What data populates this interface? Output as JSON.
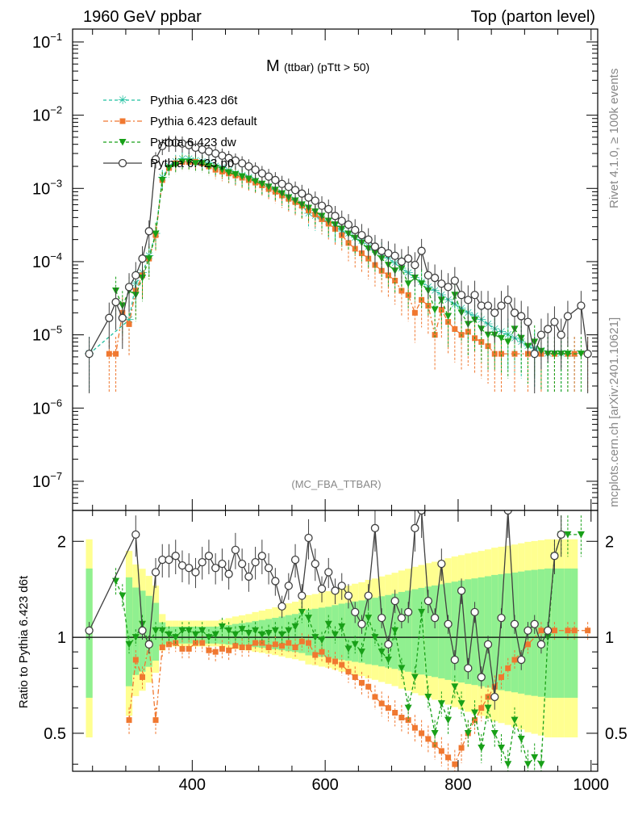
{
  "header": {
    "left": "1960 GeV ppbar",
    "right": "Top (parton level)"
  },
  "side": {
    "rivet": "Rivet 4.1.0, ≥ 100k events",
    "mcplots": "mcplots.cern.ch [arXiv:2401.10621]"
  },
  "colors": {
    "d6t": "#20c0a0",
    "default": "#f07830",
    "dw": "#18a018",
    "p0": "#404040",
    "band_yellow": "#ffff90",
    "band_green": "#90f090"
  },
  "chart_data": [
    {
      "type": "line",
      "title_main": "M",
      "title_sub": "(ttbar) (pTtt > 50)",
      "xlabel": "",
      "ylabel": "",
      "yscale": "log",
      "xlim": [
        220,
        1010
      ],
      "ylim": [
        4e-08,
        0.15
      ],
      "y_ticks": [
        "10^-1",
        "10^-2",
        "10^-3",
        "10^-4",
        "10^-5",
        "10^-6",
        "10^-7"
      ],
      "annotation": "(MC_FBA_TTBAR)",
      "legend_position": "top-left",
      "series": [
        {
          "name": "Pythia 6.423 d6t",
          "marker": "star",
          "key": "d6t",
          "x": [
            245,
            305,
            315,
            325,
            335,
            345,
            355,
            365,
            375,
            385,
            395,
            405,
            415,
            425,
            435,
            445,
            455,
            465,
            475,
            485,
            495,
            505,
            515,
            525,
            535,
            545,
            555,
            565,
            575,
            585,
            595,
            605,
            615,
            625,
            635,
            645,
            655,
            665,
            675,
            685,
            695,
            705,
            715,
            725,
            735,
            745,
            755,
            765,
            775,
            785,
            795,
            805,
            815,
            825,
            835,
            845,
            855,
            865,
            875,
            885,
            895,
            905,
            915,
            925,
            935,
            945,
            955,
            965,
            975
          ],
          "y": [
            5.5e-06,
            1.6e-05,
            5e-05,
            7e-05,
            0.00012,
            0.00024,
            0.0014,
            0.002,
            0.0023,
            0.0025,
            0.0025,
            0.0024,
            0.0023,
            0.0022,
            0.002,
            0.0019,
            0.00175,
            0.0016,
            0.0015,
            0.0014,
            0.00125,
            0.00115,
            0.00105,
            0.00095,
            0.00085,
            0.00075,
            0.00068,
            0.0006,
            0.00045,
            0.00042,
            0.00038,
            0.00035,
            0.0003,
            0.00026,
            0.00024,
            0.00021,
            0.00019,
            0.00016,
            0.000145,
            0.000125,
            0.00011,
            9.5e-05,
            8e-05,
            7e-05,
            6e-05,
            5.2e-05,
            4.5e-05,
            4e-05,
            3.5e-05,
            3e-05,
            2.6e-05,
            2.3e-05,
            2e-05,
            1.8e-05,
            1.6e-05,
            1.4e-05,
            1.2e-05,
            1.1e-05,
            1e-05,
            9e-06,
            8e-06,
            7e-06,
            6.5e-06,
            6e-06,
            5.5e-06,
            5.5e-06,
            5.5e-06,
            5.5e-06,
            5.5e-06
          ]
        },
        {
          "name": "Pythia 6.423 default",
          "marker": "square",
          "key": "default",
          "x": [
            275,
            285,
            295,
            305,
            315,
            325,
            335,
            345,
            355,
            365,
            375,
            385,
            395,
            405,
            415,
            425,
            435,
            445,
            455,
            465,
            475,
            485,
            495,
            505,
            515,
            525,
            535,
            545,
            555,
            565,
            575,
            585,
            595,
            605,
            615,
            625,
            635,
            645,
            655,
            665,
            675,
            685,
            695,
            705,
            715,
            725,
            735,
            745,
            755,
            765,
            775,
            785,
            795,
            805,
            815,
            825,
            835,
            845,
            855,
            865,
            885,
            905,
            925,
            945,
            965,
            975,
            995
          ],
          "y": [
            5.5e-06,
            5.5e-06,
            2e-05,
            1.4e-05,
            4e-05,
            6.5e-05,
            0.00011,
            0.00023,
            0.0013,
            0.0019,
            0.0022,
            0.0023,
            0.0023,
            0.0023,
            0.0022,
            0.002,
            0.0018,
            0.0017,
            0.0016,
            0.0015,
            0.0014,
            0.0013,
            0.0012,
            0.0011,
            0.00098,
            0.0009,
            0.0008,
            0.00072,
            0.00065,
            0.00058,
            0.0005,
            0.00044,
            0.00038,
            0.00033,
            0.00028,
            0.00023,
            0.00018,
            0.00015,
            0.00013,
            0.00011,
            9e-05,
            7.5e-05,
            6.5e-05,
            5.5e-05,
            4e-05,
            3.5e-05,
            2e-05,
            3e-05,
            2.5e-05,
            1e-05,
            2.2e-05,
            1.5e-05,
            1.2e-05,
            1e-05,
            1.1e-05,
            9e-06,
            8e-06,
            7e-06,
            5.5e-06,
            5.5e-06,
            5.5e-06,
            5.5e-06,
            5.5e-06,
            5.5e-06,
            5.5e-06,
            5.5e-06,
            5.5e-06
          ]
        },
        {
          "name": "Pythia 6.423 dw",
          "marker": "triangle-down",
          "key": "dw",
          "x": [
            285,
            295,
            305,
            315,
            325,
            335,
            345,
            355,
            365,
            375,
            385,
            395,
            405,
            415,
            425,
            435,
            445,
            455,
            465,
            475,
            485,
            495,
            505,
            515,
            525,
            535,
            545,
            555,
            565,
            575,
            585,
            595,
            605,
            615,
            625,
            635,
            645,
            655,
            665,
            675,
            685,
            695,
            705,
            715,
            725,
            735,
            745,
            755,
            765,
            775,
            785,
            795,
            805,
            815,
            825,
            835,
            845,
            855,
            865,
            875,
            885,
            895,
            905,
            915,
            925,
            935,
            945,
            955,
            965,
            985
          ],
          "y": [
            4e-05,
            2.5e-05,
            4e-05,
            3.5e-05,
            6e-05,
            0.00011,
            0.00024,
            0.0013,
            0.0019,
            0.0021,
            0.0023,
            0.0023,
            0.0022,
            0.0022,
            0.002,
            0.0019,
            0.0018,
            0.00165,
            0.00155,
            0.00145,
            0.00135,
            0.00125,
            0.00115,
            0.00105,
            0.00095,
            0.00085,
            0.00075,
            0.00068,
            0.0006,
            0.00054,
            0.00048,
            0.00042,
            0.00036,
            0.00032,
            0.00028,
            0.00024,
            0.00021,
            0.00018,
            0.00015,
            0.00013,
            0.00011,
            9e-05,
            7.5e-05,
            8e-05,
            5e-05,
            6e-05,
            5e-05,
            4e-05,
            2.2e-05,
            3e-05,
            1.8e-05,
            3.5e-05,
            2e-05,
            1.4e-05,
            1.6e-05,
            1.2e-05,
            1e-05,
            1e-05,
            9e-06,
            8e-06,
            1.2e-05,
            9e-06,
            7e-06,
            8e-06,
            6e-06,
            5.5e-06,
            5.5e-06,
            5.5e-06,
            5.5e-06,
            5.5e-06
          ]
        },
        {
          "name": "Pythia 6.423 p0",
          "marker": "circle",
          "key": "p0",
          "x": [
            245,
            275,
            285,
            295,
            305,
            315,
            325,
            335,
            345,
            355,
            365,
            375,
            385,
            395,
            405,
            415,
            425,
            435,
            445,
            455,
            465,
            475,
            485,
            495,
            505,
            515,
            525,
            535,
            545,
            555,
            565,
            575,
            585,
            595,
            605,
            615,
            625,
            635,
            645,
            655,
            665,
            675,
            685,
            695,
            705,
            715,
            725,
            735,
            745,
            755,
            765,
            775,
            785,
            795,
            805,
            815,
            825,
            835,
            845,
            855,
            865,
            875,
            885,
            895,
            905,
            915,
            925,
            935,
            945,
            955,
            965,
            985,
            995
          ],
          "y": [
            5.5e-06,
            1.7e-05,
            2.8e-05,
            1.7e-05,
            4.5e-05,
            6.5e-05,
            0.00011,
            0.00026,
            0.0025,
            0.0038,
            0.0042,
            0.0042,
            0.0041,
            0.0039,
            0.0036,
            0.0034,
            0.0032,
            0.003,
            0.0028,
            0.0026,
            0.0024,
            0.0022,
            0.002,
            0.0018,
            0.0016,
            0.00145,
            0.0013,
            0.00115,
            0.00105,
            0.00095,
            0.00085,
            0.00075,
            0.00068,
            0.00058,
            0.00052,
            0.00042,
            0.00036,
            0.00032,
            0.00027,
            0.00023,
            0.0002,
            0.00016,
            0.00014,
            0.00013,
            0.00012,
            0.0001,
            0.00011,
            9e-05,
            0.00014,
            6.5e-05,
            6e-05,
            5e-05,
            4.5e-05,
            5.5e-05,
            3.5e-05,
            3e-05,
            3.5e-05,
            2.5e-05,
            2.5e-05,
            2e-05,
            2.5e-05,
            3e-05,
            2e-05,
            1.8e-05,
            1.5e-05,
            5.5e-06,
            1e-05,
            1.2e-05,
            1.5e-05,
            1e-05,
            1.8e-05,
            2.5e-05,
            5.5e-06
          ]
        }
      ]
    },
    {
      "type": "line",
      "ylabel": "Ratio to Pythia 6.423 d6t",
      "xlabel": "",
      "yscale": "log",
      "xlim": [
        220,
        1010
      ],
      "ylim": [
        0.38,
        2.5
      ],
      "x_ticks": [
        400,
        600,
        800,
        1000
      ],
      "y_ticks": [
        0.5,
        1,
        2
      ],
      "reference_line": 1,
      "series": [
        {
          "name": "Pythia 6.423 default",
          "key": "default",
          "x": [
            305,
            315,
            325,
            335,
            345,
            355,
            365,
            375,
            385,
            395,
            405,
            415,
            425,
            435,
            445,
            455,
            465,
            475,
            485,
            495,
            505,
            515,
            525,
            535,
            545,
            555,
            565,
            575,
            585,
            595,
            605,
            615,
            625,
            635,
            645,
            655,
            665,
            675,
            685,
            695,
            705,
            715,
            725,
            735,
            745,
            755,
            765,
            775,
            785,
            795,
            805,
            815,
            825,
            835,
            845,
            855,
            865,
            875,
            885,
            905,
            925,
            945,
            965,
            975,
            995
          ],
          "y": [
            0.55,
            0.85,
            0.75,
            0.95,
            0.55,
            0.93,
            0.95,
            0.96,
            0.92,
            0.92,
            0.96,
            0.96,
            0.91,
            0.9,
            0.92,
            0.91,
            0.94,
            0.93,
            0.93,
            0.96,
            0.96,
            0.93,
            0.95,
            0.94,
            0.96,
            0.93,
            0.97,
            0.96,
            0.88,
            0.9,
            0.85,
            0.84,
            0.82,
            0.78,
            0.75,
            0.72,
            0.7,
            0.65,
            0.62,
            0.6,
            0.58,
            0.56,
            0.55,
            0.52,
            0.5,
            0.48,
            0.46,
            0.44,
            0.42,
            0.4,
            0.45,
            0.5,
            0.55,
            0.6,
            0.65,
            0.7,
            0.75,
            0.8,
            0.85,
            0.95,
            1.05,
            1.05,
            1.05,
            1.05,
            1.05
          ]
        },
        {
          "name": "Pythia 6.423 dw",
          "key": "dw",
          "x": [
            285,
            295,
            305,
            315,
            325,
            335,
            345,
            355,
            365,
            375,
            385,
            395,
            405,
            415,
            425,
            435,
            445,
            455,
            465,
            475,
            485,
            495,
            505,
            515,
            525,
            535,
            545,
            555,
            565,
            575,
            585,
            595,
            605,
            615,
            625,
            635,
            645,
            655,
            665,
            675,
            685,
            695,
            705,
            715,
            725,
            735,
            745,
            755,
            765,
            775,
            785,
            795,
            805,
            815,
            825,
            835,
            845,
            855,
            865,
            875,
            885,
            895,
            905,
            915,
            925,
            935,
            945,
            955,
            965,
            985
          ],
          "y": [
            1.5,
            1.35,
            0.95,
            1.0,
            1.1,
            0.95,
            1.05,
            1.05,
            1.02,
            1.0,
            1.05,
            1.05,
            1.02,
            1.05,
            1.0,
            1.02,
            1.08,
            1.05,
            1.02,
            1.06,
            1.03,
            1.05,
            1.02,
            1.03,
            1.05,
            1.02,
            1.05,
            1.08,
            1.2,
            1.15,
            1.0,
            0.98,
            1.1,
            1.02,
            1.08,
            0.92,
            0.95,
            0.9,
            1.15,
            1.0,
            0.9,
            0.85,
            1.05,
            0.8,
            0.6,
            0.75,
            1.2,
            0.65,
            0.5,
            0.62,
            0.55,
            0.7,
            0.62,
            0.5,
            0.58,
            0.45,
            0.6,
            0.5,
            0.45,
            0.4,
            0.55,
            0.48,
            0.4,
            0.42,
            0.4,
            1.0,
            1.8,
            2.1,
            2.1,
            2.1
          ]
        },
        {
          "name": "Pythia 6.423 p0",
          "key": "p0",
          "x": [
            245,
            315,
            325,
            335,
            345,
            355,
            365,
            375,
            385,
            395,
            405,
            415,
            425,
            435,
            445,
            455,
            465,
            475,
            485,
            495,
            505,
            515,
            525,
            535,
            545,
            555,
            565,
            575,
            585,
            595,
            605,
            615,
            625,
            635,
            645,
            655,
            665,
            675,
            685,
            695,
            705,
            715,
            725,
            735,
            745,
            755,
            765,
            775,
            785,
            795,
            805,
            815,
            825,
            835,
            845,
            855,
            865,
            875,
            885,
            895,
            905,
            915,
            925,
            935,
            945,
            955
          ],
          "y": [
            1.05,
            2.1,
            1.05,
            0.95,
            1.6,
            1.75,
            1.75,
            1.8,
            1.68,
            1.65,
            1.6,
            1.72,
            1.8,
            1.65,
            1.7,
            1.58,
            1.88,
            1.7,
            1.55,
            1.72,
            1.8,
            1.65,
            1.5,
            1.25,
            1.45,
            1.75,
            1.35,
            2.05,
            1.7,
            1.42,
            1.6,
            1.4,
            1.45,
            1.35,
            1.2,
            1.1,
            1.35,
            2.2,
            1.15,
            0.95,
            1.3,
            1.15,
            1.2,
            2.2,
            2.5,
            1.3,
            1.15,
            1.7,
            1.1,
            0.85,
            1.4,
            0.8,
            1.2,
            0.75,
            0.95,
            0.65,
            1.15,
            2.5,
            1.1,
            0.85,
            1.05,
            1.1,
            0.95,
            1.05,
            1.8,
            2.1
          ]
        }
      ]
    }
  ]
}
